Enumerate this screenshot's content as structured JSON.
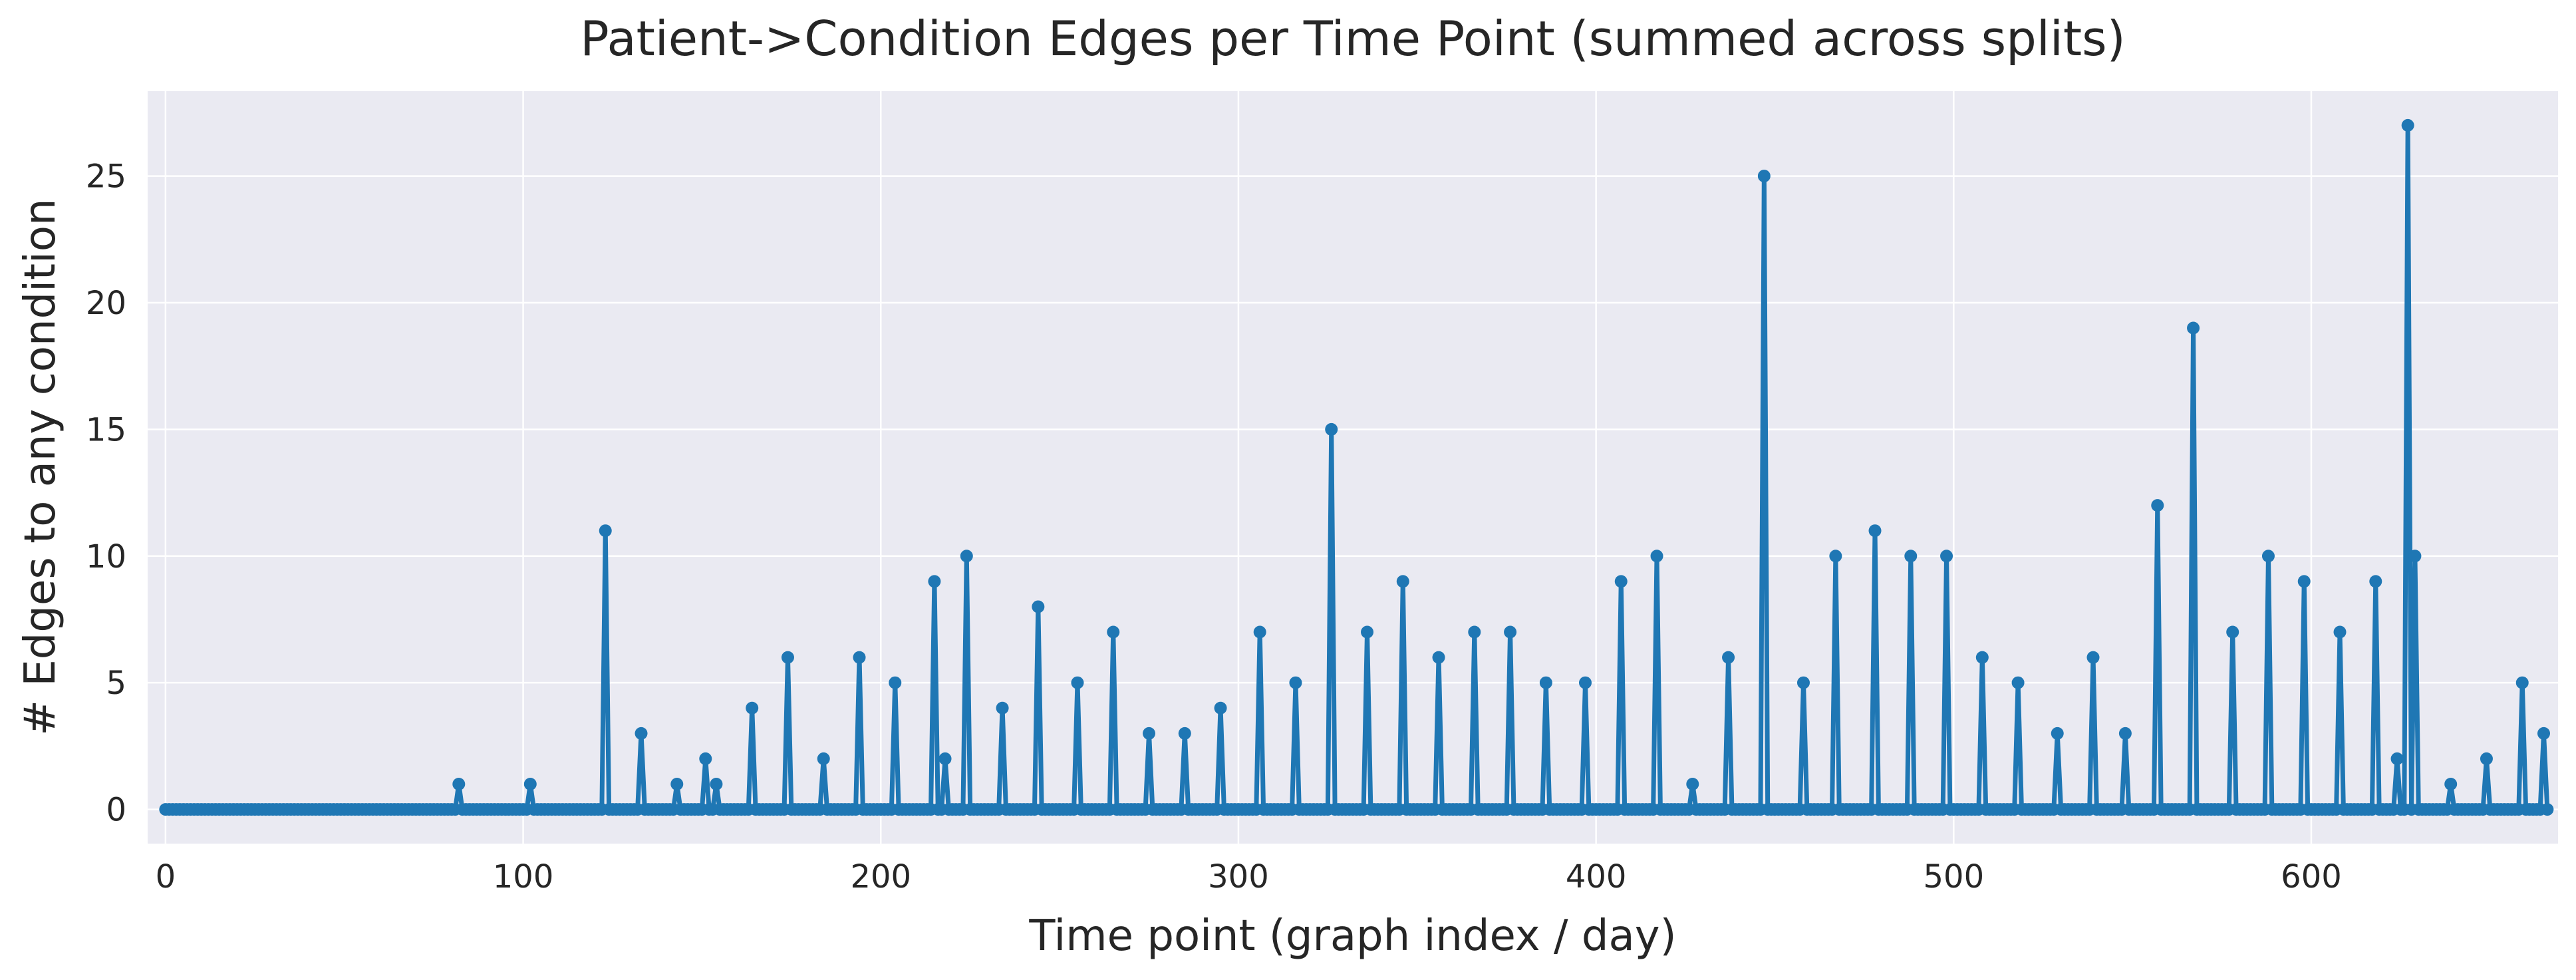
{
  "chart_data": {
    "type": "line",
    "title": "Patient->Condition Edges per Time Point (summed across splits)",
    "xlabel": "Time point (graph index / day)",
    "ylabel": "# Edges to any condition",
    "xlim": [
      -5,
      669
    ],
    "ylim": [
      -1.35,
      28.35
    ],
    "xticks": [
      0,
      100,
      200,
      300,
      400,
      500,
      600
    ],
    "yticks": [
      0,
      5,
      10,
      15,
      20,
      25
    ],
    "grid": true,
    "n_points": 667,
    "series": [
      {
        "color": "#1f77b4",
        "baseline": 0,
        "nonzero_points": [
          [
            82,
            1
          ],
          [
            102,
            1
          ],
          [
            123,
            11
          ],
          [
            133,
            3
          ],
          [
            143,
            1
          ],
          [
            151,
            2
          ],
          [
            154,
            1
          ],
          [
            164,
            4
          ],
          [
            174,
            6
          ],
          [
            184,
            2
          ],
          [
            194,
            6
          ],
          [
            204,
            5
          ],
          [
            215,
            9
          ],
          [
            218,
            2
          ],
          [
            224,
            10
          ],
          [
            234,
            4
          ],
          [
            244,
            8
          ],
          [
            255,
            5
          ],
          [
            265,
            7
          ],
          [
            275,
            3
          ],
          [
            285,
            3
          ],
          [
            295,
            4
          ],
          [
            306,
            7
          ],
          [
            316,
            5
          ],
          [
            326,
            15
          ],
          [
            336,
            7
          ],
          [
            346,
            9
          ],
          [
            356,
            6
          ],
          [
            366,
            7
          ],
          [
            376,
            7
          ],
          [
            386,
            5
          ],
          [
            397,
            5
          ],
          [
            407,
            9
          ],
          [
            417,
            10
          ],
          [
            427,
            1
          ],
          [
            437,
            6
          ],
          [
            447,
            25
          ],
          [
            458,
            5
          ],
          [
            467,
            10
          ],
          [
            478,
            11
          ],
          [
            488,
            10
          ],
          [
            498,
            10
          ],
          [
            508,
            6
          ],
          [
            518,
            5
          ],
          [
            529,
            3
          ],
          [
            539,
            6
          ],
          [
            548,
            3
          ],
          [
            557,
            12
          ],
          [
            567,
            19
          ],
          [
            578,
            7
          ],
          [
            588,
            10
          ],
          [
            598,
            9
          ],
          [
            608,
            7
          ],
          [
            618,
            9
          ],
          [
            624,
            2
          ],
          [
            627,
            27
          ],
          [
            629,
            10
          ],
          [
            639,
            1
          ],
          [
            649,
            2
          ],
          [
            659,
            5
          ],
          [
            665,
            3
          ]
        ]
      }
    ]
  }
}
